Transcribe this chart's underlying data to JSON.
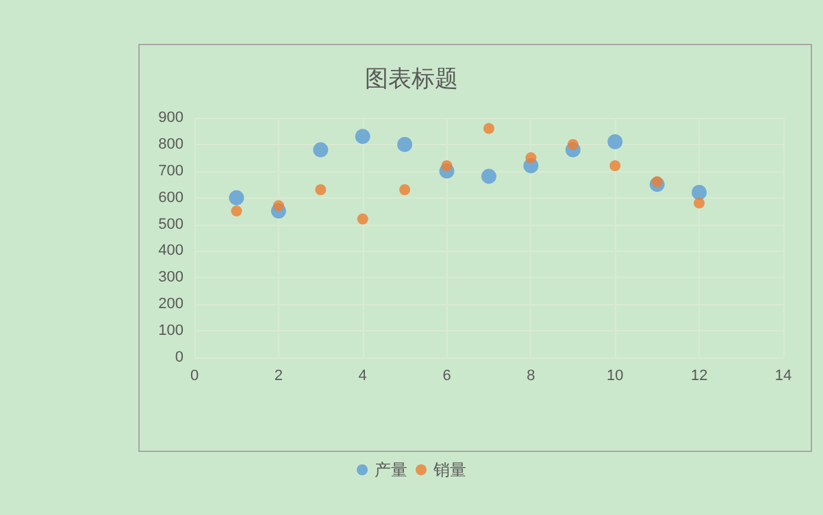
{
  "chart_data": {
    "type": "scatter",
    "title": "图表标题",
    "x": [
      1,
      2,
      3,
      4,
      5,
      6,
      7,
      8,
      9,
      10,
      11,
      12
    ],
    "series": [
      {
        "name": "产量",
        "color": "#5b9bd5",
        "values": [
          600,
          550,
          780,
          830,
          800,
          700,
          680,
          720,
          780,
          810,
          650,
          620
        ]
      },
      {
        "name": "销量",
        "color": "#ed7d31",
        "values": [
          550,
          570,
          630,
          520,
          630,
          720,
          860,
          750,
          800,
          720,
          660,
          580
        ]
      }
    ],
    "xlim": [
      0,
      14
    ],
    "xticks": [
      0,
      2,
      4,
      6,
      8,
      10,
      12,
      14
    ],
    "ylim": [
      0,
      900
    ],
    "yticks": [
      0,
      100,
      200,
      300,
      400,
      500,
      600,
      700,
      800,
      900
    ],
    "grid": true,
    "legend": "bottom",
    "marker": "circle"
  }
}
